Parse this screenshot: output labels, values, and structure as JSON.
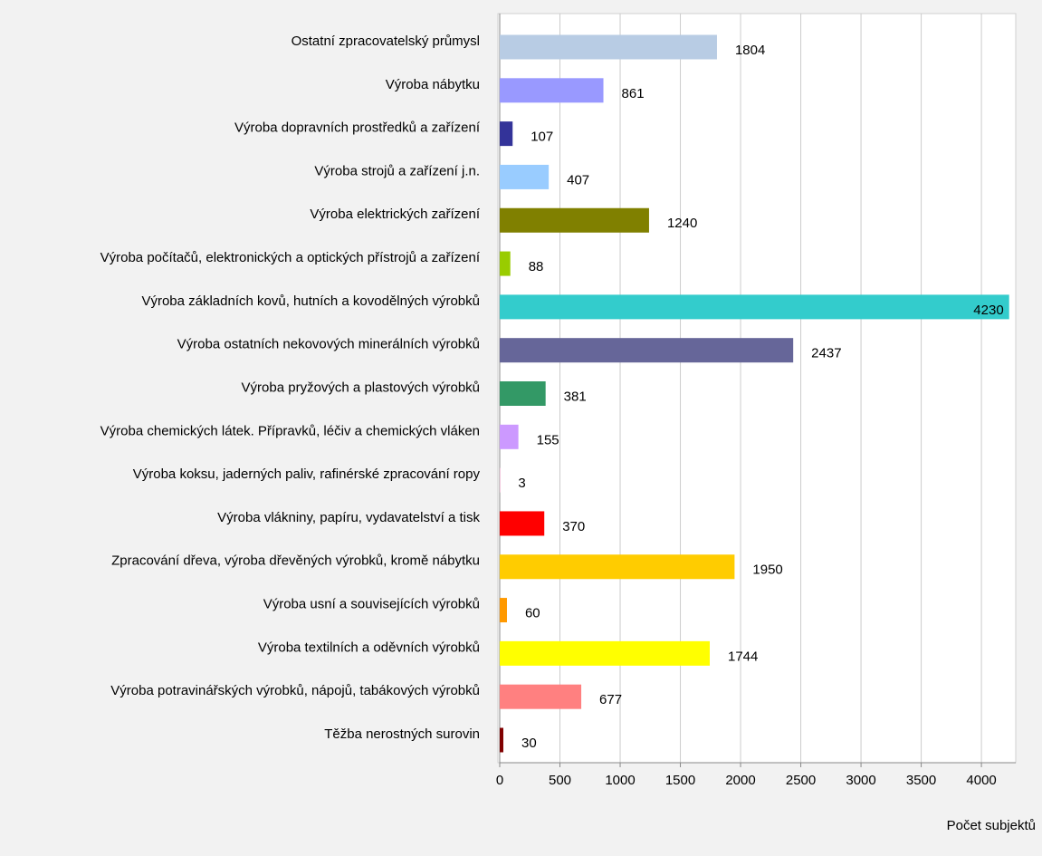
{
  "chart_data": {
    "type": "bar",
    "orientation": "horizontal",
    "x_label": "Počet subjektů",
    "categories": [
      "Ostatní zpracovatelský průmysl",
      "Výroba nábytku",
      "Výroba dopravních prostředků a zařízení",
      "Výroba strojů a zařízení j.n.",
      "Výroba elektrických zařízení",
      "Výroba počítačů, elektronických a optických přístrojů a zařízení",
      "Výroba základních kovů, hutních a kovodělných výrobků",
      "Výroba ostatních nekovových minerálních výrobků",
      "Výroba pryžových a plastových výrobků",
      "Výroba chemických látek. Přípravků, léčiv a chemických vláken",
      "Výroba koksu, jaderných paliv, rafinérské zpracování ropy",
      "Výroba vlákniny, papíru, vydavatelství a tisk",
      "Zpracování dřeva, výroba dřevěných výrobků, kromě nábytku",
      "Výroba usní a souvisejících výrobků",
      "Výroba textilních a oděvních výrobků",
      "Výroba potravinářských výrobků, nápojů, tabákových výrobků",
      "Těžba nerostných surovin"
    ],
    "values": [
      1804,
      861,
      107,
      407,
      1240,
      88,
      4230,
      2437,
      381,
      155,
      3,
      370,
      1950,
      60,
      1744,
      677,
      30
    ],
    "colors": [
      "#b8cce4",
      "#9999ff",
      "#333399",
      "#99ccff",
      "#808000",
      "#99cc00",
      "#33cccc",
      "#666699",
      "#339966",
      "#cc99ff",
      "#ff99cc",
      "#ff0000",
      "#ffcc00",
      "#ff9900",
      "#ffff00",
      "#ff8080",
      "#800000"
    ],
    "xlim": [
      0,
      4285
    ],
    "xticks": [
      0,
      500,
      1000,
      1500,
      2000,
      2500,
      3000,
      3500,
      4000
    ],
    "grid": true
  }
}
